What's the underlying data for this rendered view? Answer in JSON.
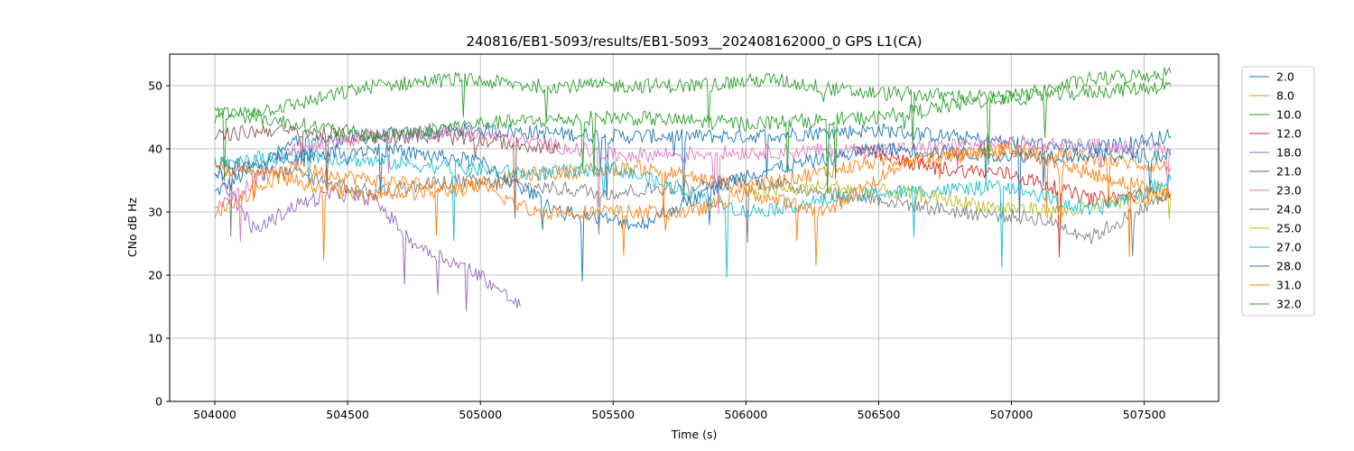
{
  "chart_data": {
    "type": "line",
    "title": "240816/EB1-5093/results/EB1-5093__202408162000_0 GPS L1(CA)",
    "xlabel": "Time (s)",
    "ylabel": "CNo dB Hz",
    "xlim": [
      503830,
      507780
    ],
    "ylim": [
      0,
      55
    ],
    "xticks": [
      504000,
      504500,
      505000,
      505500,
      506000,
      506500,
      507000,
      507500
    ],
    "yticks": [
      0,
      10,
      20,
      30,
      40,
      50
    ],
    "grid": true,
    "legend_position": "outside-right",
    "series": [
      {
        "name": "2.0",
        "color": "#1f77b4",
        "x": [
          504000,
          504300,
          504600,
          505000,
          505500,
          506000,
          506500,
          507000,
          507300,
          507600
        ],
        "y": [
          33,
          41,
          42,
          43,
          42,
          42,
          43,
          41,
          40,
          42
        ]
      },
      {
        "name": "8.0",
        "color": "#ff7f0e",
        "x": [
          504000,
          504300,
          504600,
          504900,
          505200,
          505600,
          506000,
          506500,
          507000,
          507600
        ],
        "y": [
          30,
          37,
          35,
          34,
          36,
          37,
          34,
          38,
          40,
          37
        ]
      },
      {
        "name": "10.0",
        "color": "#2ca02c",
        "x": [
          504000,
          504300,
          504600,
          504900,
          505200,
          505500,
          505800,
          506100,
          506400,
          507000,
          507600
        ],
        "y": [
          45,
          47,
          50,
          51,
          50,
          50,
          50,
          51,
          49,
          48,
          50
        ]
      },
      {
        "name": "12.0",
        "color": "#d62728",
        "x": [
          506400,
          506700,
          507000,
          507300,
          507600
        ],
        "y": [
          40,
          37,
          36,
          32,
          33
        ]
      },
      {
        "name": "18.0",
        "color": "#9467bd",
        "x": [
          504000,
          504150,
          504300,
          504450,
          504600,
          504750,
          504900,
          505000,
          505150
        ],
        "y": [
          37,
          27,
          31,
          33,
          32,
          25,
          22,
          20,
          15
        ]
      },
      {
        "name": "21.0",
        "color": "#8c564b",
        "x": [
          504000,
          504200,
          504500,
          504800,
          505100,
          505300
        ],
        "y": [
          42,
          43,
          42,
          42,
          41,
          40
        ]
      },
      {
        "name": "23.0",
        "color": "#e377c2",
        "x": [
          504000,
          504300,
          504600,
          504900,
          505200,
          505500,
          506600,
          507000,
          507600
        ],
        "y": [
          30,
          40,
          42,
          43,
          41,
          39,
          40,
          41,
          40
        ]
      },
      {
        "name": "24.0",
        "color": "#7f7f7f",
        "x": [
          504000,
          504300,
          504600,
          504900,
          505200,
          505500,
          506000,
          506500,
          506800,
          507100,
          507300,
          507600
        ],
        "y": [
          38,
          36,
          33,
          35,
          34,
          33,
          35,
          32,
          30,
          29,
          26,
          33
        ]
      },
      {
        "name": "25.0",
        "color": "#bcbd22",
        "x": [
          506000,
          506300,
          506600,
          506900,
          507200,
          507600
        ],
        "y": [
          33,
          34,
          33,
          31,
          30,
          33
        ]
      },
      {
        "name": "27.0",
        "color": "#17becf",
        "x": [
          504000,
          504300,
          504600,
          504900,
          505200,
          505500,
          506000,
          506500,
          507000,
          507300,
          507600
        ],
        "y": [
          38,
          39,
          38,
          37,
          36,
          37,
          30,
          33,
          34,
          30,
          35
        ]
      },
      {
        "name": "28.0",
        "color": "#1f77b4",
        "x": [
          504000,
          504300,
          504600,
          505000,
          505300,
          505600,
          506000,
          506500,
          507000,
          507600
        ],
        "y": [
          36,
          39,
          40,
          38,
          30,
          28,
          36,
          40,
          39,
          39
        ]
      },
      {
        "name": "31.0",
        "color": "#ff7f0e",
        "x": [
          504000,
          504200,
          504500,
          504800,
          505000,
          505200,
          505400,
          505600,
          505800,
          506000,
          506300,
          506600,
          507000,
          507300,
          507600
        ],
        "y": [
          37,
          36,
          33,
          33,
          34,
          30,
          30,
          30,
          30,
          33,
          30,
          38,
          40,
          36,
          33
        ]
      },
      {
        "name": "32.0",
        "color": "#2ca02c",
        "x": [
          504000,
          504300,
          504600,
          505000,
          505500,
          506000,
          506500,
          506800,
          507100,
          507300,
          507600
        ],
        "y": [
          46,
          44,
          42,
          44,
          45,
          44,
          45,
          47,
          49,
          51,
          52
        ]
      }
    ]
  }
}
